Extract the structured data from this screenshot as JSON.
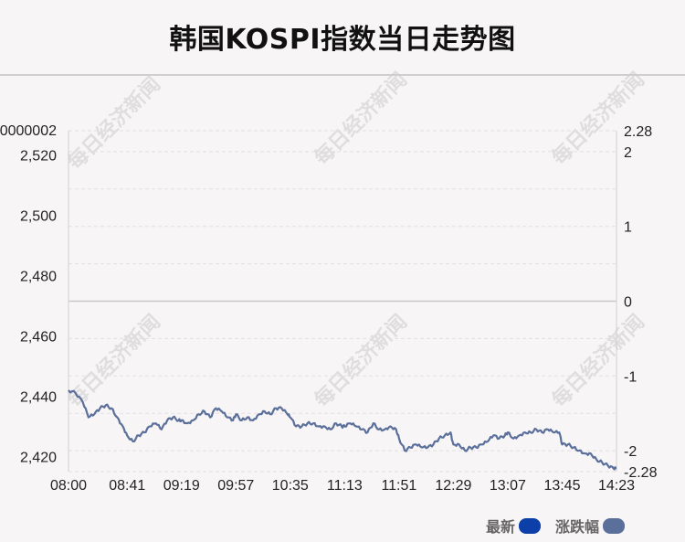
{
  "title": "韩国KOSPI指数当日走势图",
  "watermark": "每日经济新闻",
  "legend": [
    {
      "label": "最新",
      "color": "#0d3fa8"
    },
    {
      "label": "涨跌幅",
      "color": "#5a6f9a"
    }
  ],
  "chart_data": {
    "type": "line",
    "left_axis": {
      "ticks": [
        2420,
        2440,
        2460,
        2480,
        2500,
        2520
      ],
      "tick_labels": [
        "2,420",
        "2,440",
        "2,460",
        "2,480",
        "2,500",
        "2,520"
      ],
      "top_label": "0000002",
      "range": [
        2415,
        2528
      ]
    },
    "right_axis": {
      "ticks": [
        -2.28,
        -2,
        -1,
        0,
        1,
        2,
        2.28
      ],
      "tick_labels": [
        "-2.28",
        "-2",
        "-1",
        "0",
        "1",
        "2",
        "2.28"
      ],
      "range": [
        -2.28,
        2.28
      ]
    },
    "x_labels": [
      "08:00",
      "08:41",
      "09:19",
      "09:57",
      "10:35",
      "11:13",
      "11:51",
      "12:29",
      "13:07",
      "13:45",
      "14:23"
    ],
    "zero_line_value": 0,
    "series": [
      {
        "color": "#5a6f9a",
        "x": [
          "08:00",
          "08:05",
          "08:10",
          "08:14",
          "08:18",
          "08:22",
          "08:26",
          "08:30",
          "08:34",
          "08:38",
          "08:41",
          "08:45",
          "08:49",
          "08:53",
          "08:57",
          "09:01",
          "09:05",
          "09:09",
          "09:13",
          "09:17",
          "09:19",
          "09:23",
          "09:27",
          "09:31",
          "09:35",
          "09:39",
          "09:43",
          "09:47",
          "09:51",
          "09:55",
          "09:57",
          "10:01",
          "10:05",
          "10:09",
          "10:13",
          "10:17",
          "10:21",
          "10:25",
          "10:29",
          "10:33",
          "10:35",
          "10:39",
          "10:43",
          "10:47",
          "10:51",
          "10:55",
          "10:59",
          "11:03",
          "11:07",
          "11:11",
          "11:13",
          "11:17",
          "11:21",
          "11:25",
          "11:29",
          "11:33",
          "11:37",
          "11:41",
          "11:45",
          "11:49",
          "11:51",
          "11:55",
          "11:59",
          "12:03",
          "12:07",
          "12:11",
          "12:15",
          "12:19",
          "12:23",
          "12:27",
          "12:29",
          "12:33",
          "12:37",
          "12:41",
          "12:45",
          "12:49",
          "12:53",
          "12:57",
          "13:01",
          "13:05",
          "13:07",
          "13:11",
          "13:15",
          "13:19",
          "13:23",
          "13:27",
          "13:31",
          "13:35",
          "13:39",
          "13:43",
          "13:45",
          "13:49",
          "13:53",
          "13:57",
          "14:01",
          "14:05",
          "14:09",
          "14:13",
          "14:17",
          "14:21",
          "14:23"
        ],
        "values": [
          2442,
          2441,
          2438,
          2433,
          2434,
          2436,
          2437,
          2436,
          2433,
          2430,
          2427,
          2425,
          2427,
          2428,
          2430,
          2431,
          2429,
          2432,
          2433,
          2432,
          2432,
          2431,
          2432,
          2434,
          2435,
          2433,
          2436,
          2435,
          2433,
          2432,
          2434,
          2432,
          2433,
          2432,
          2434,
          2435,
          2434,
          2436,
          2436,
          2434,
          2433,
          2430,
          2430,
          2431,
          2431,
          2430,
          2430,
          2429,
          2431,
          2430,
          2430,
          2431,
          2430,
          2429,
          2428,
          2431,
          2429,
          2429,
          2430,
          2429,
          2426,
          2422,
          2423,
          2424,
          2423,
          2423,
          2424,
          2426,
          2427,
          2428,
          2424,
          2424,
          2422,
          2423,
          2423,
          2424,
          2425,
          2427,
          2426,
          2427,
          2428,
          2426,
          2427,
          2428,
          2428,
          2429,
          2428,
          2429,
          2428,
          2428,
          2424,
          2424,
          2423,
          2422,
          2421,
          2421,
          2419,
          2418,
          2417,
          2416,
          2416
        ]
      }
    ],
    "grid": "horizontal-dashed"
  }
}
